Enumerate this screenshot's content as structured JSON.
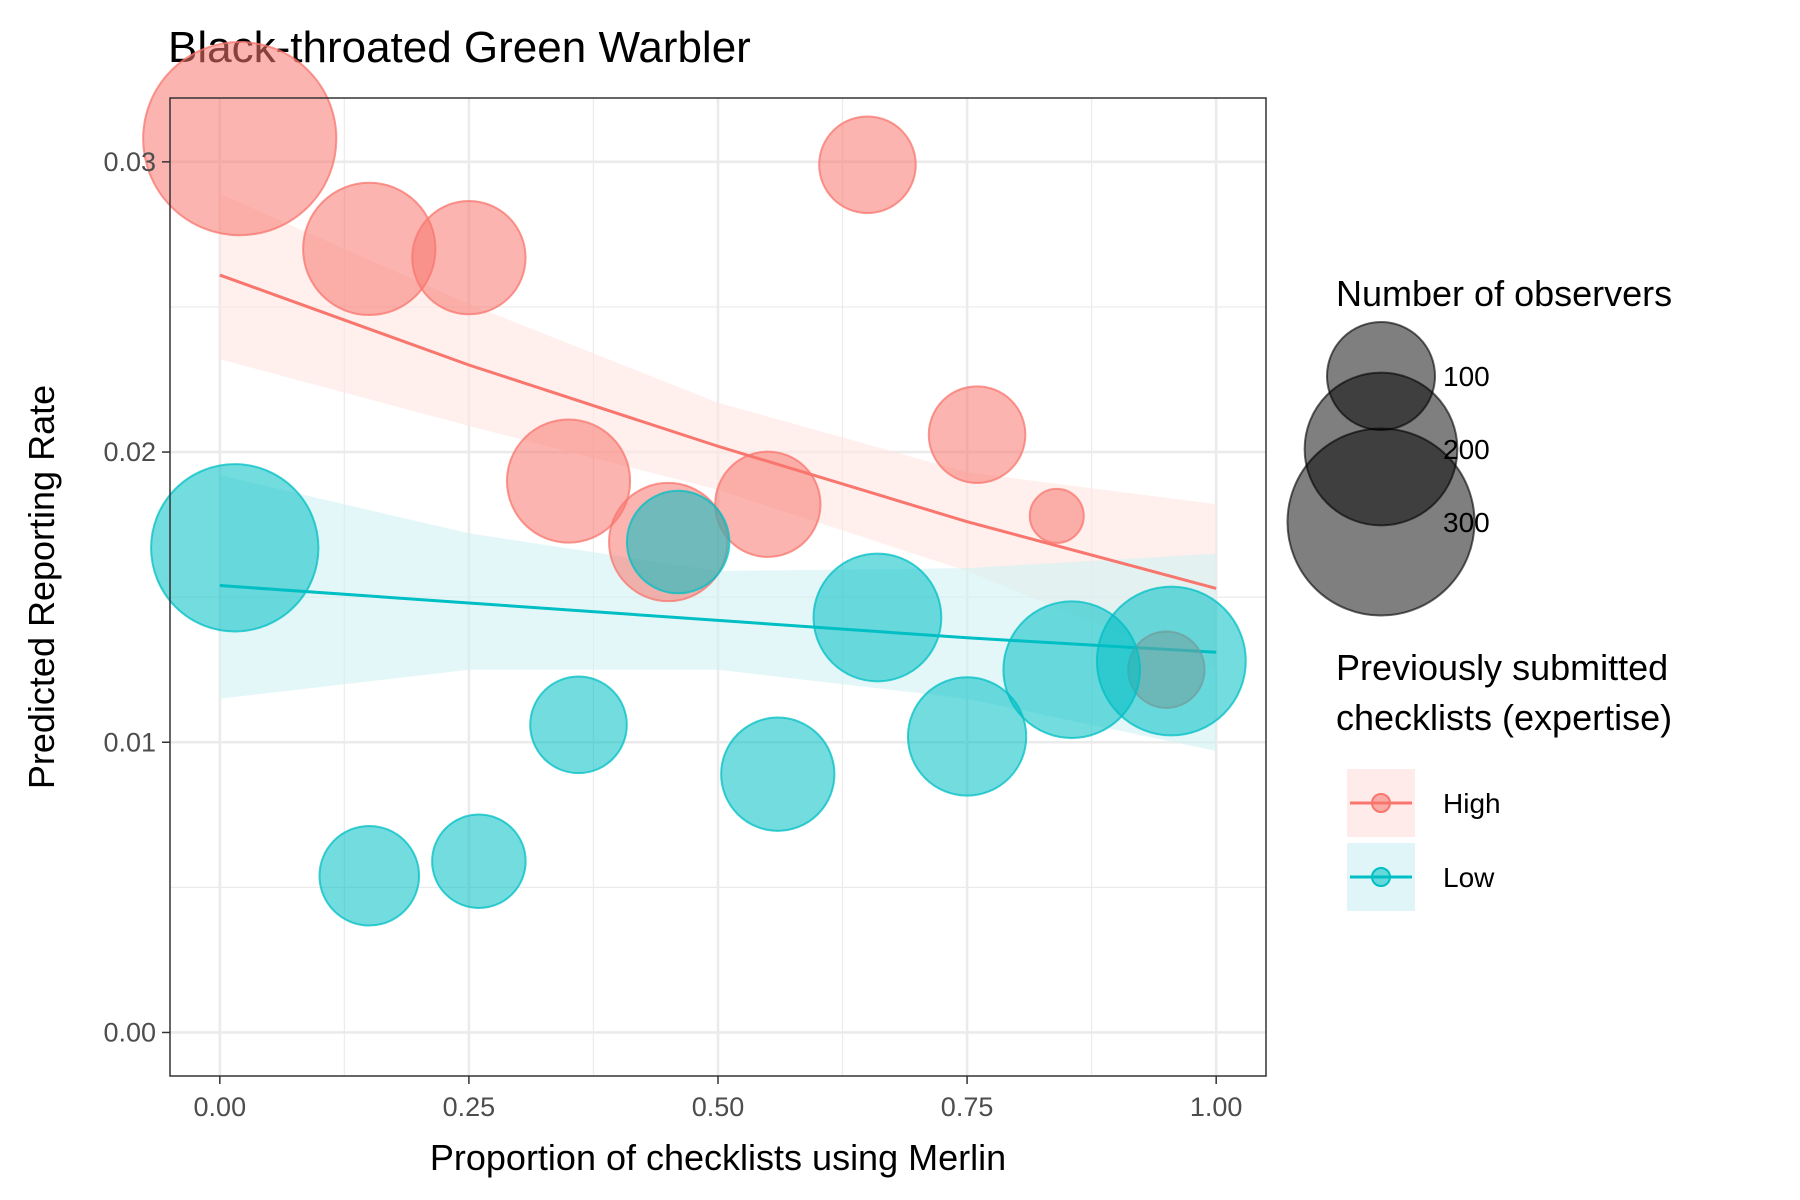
{
  "chart_data": {
    "type": "scatter",
    "title": "Black-throated Green Warbler",
    "xlabel": "Proportion of checklists using Merlin",
    "ylabel": "Predicted Reporting Rate",
    "xlim": [
      -0.05,
      1.05
    ],
    "ylim": [
      -0.0015,
      0.0322
    ],
    "x_ticks": [
      0.0,
      0.25,
      0.5,
      0.75,
      1.0
    ],
    "x_tick_labels": [
      "0.00",
      "0.25",
      "0.50",
      "0.75",
      "1.00"
    ],
    "y_ticks": [
      0.0,
      0.01,
      0.02,
      0.03
    ],
    "y_tick_labels": [
      "0.00",
      "0.01",
      "0.02",
      "0.03"
    ],
    "grid": true,
    "legend_position": "right",
    "size_legend": {
      "title": "Number of observers",
      "entries": [
        {
          "label": "100",
          "value": 100
        },
        {
          "label": "200",
          "value": 200
        },
        {
          "label": "300",
          "value": 300
        }
      ]
    },
    "color_legend": {
      "title_lines": [
        "Previously submitted",
        "checklists (expertise)"
      ]
    },
    "series": [
      {
        "name": "High",
        "color": "#F8766D",
        "ribbon_color": "#FFE4E1",
        "points": [
          {
            "x": 0.02,
            "y": 0.0308,
            "n": 320
          },
          {
            "x": 0.15,
            "y": 0.027,
            "n": 150
          },
          {
            "x": 0.25,
            "y": 0.0267,
            "n": 110
          },
          {
            "x": 0.35,
            "y": 0.019,
            "n": 130
          },
          {
            "x": 0.45,
            "y": 0.0169,
            "n": 120
          },
          {
            "x": 0.55,
            "y": 0.0182,
            "n": 95
          },
          {
            "x": 0.65,
            "y": 0.0299,
            "n": 80
          },
          {
            "x": 0.76,
            "y": 0.0206,
            "n": 80
          },
          {
            "x": 0.84,
            "y": 0.0178,
            "n": 25
          },
          {
            "x": 0.95,
            "y": 0.0125,
            "n": 50
          }
        ],
        "fit": [
          {
            "x": 0.0,
            "y": 0.0261,
            "lo": 0.0232,
            "hi": 0.0289
          },
          {
            "x": 0.25,
            "y": 0.023,
            "lo": 0.0209,
            "hi": 0.0251
          },
          {
            "x": 0.5,
            "y": 0.0202,
            "lo": 0.0187,
            "hi": 0.0217
          },
          {
            "x": 0.75,
            "y": 0.0176,
            "lo": 0.0159,
            "hi": 0.0193
          },
          {
            "x": 1.0,
            "y": 0.0153,
            "lo": 0.0124,
            "hi": 0.0182
          }
        ]
      },
      {
        "name": "Low",
        "color": "#00BFC4",
        "ribbon_color": "#D2F1F3",
        "points": [
          {
            "x": 0.015,
            "y": 0.0167,
            "n": 240
          },
          {
            "x": 0.15,
            "y": 0.0054,
            "n": 85
          },
          {
            "x": 0.26,
            "y": 0.0059,
            "n": 75
          },
          {
            "x": 0.36,
            "y": 0.0106,
            "n": 80
          },
          {
            "x": 0.46,
            "y": 0.0169,
            "n": 90
          },
          {
            "x": 0.56,
            "y": 0.0089,
            "n": 110
          },
          {
            "x": 0.66,
            "y": 0.0143,
            "n": 140
          },
          {
            "x": 0.75,
            "y": 0.0102,
            "n": 120
          },
          {
            "x": 0.855,
            "y": 0.0125,
            "n": 160
          },
          {
            "x": 0.955,
            "y": 0.0128,
            "n": 190
          }
        ],
        "fit": [
          {
            "x": 0.0,
            "y": 0.0154,
            "lo": 0.0115,
            "hi": 0.0192
          },
          {
            "x": 0.25,
            "y": 0.0148,
            "lo": 0.0125,
            "hi": 0.0172
          },
          {
            "x": 0.5,
            "y": 0.0142,
            "lo": 0.0125,
            "hi": 0.0159
          },
          {
            "x": 0.75,
            "y": 0.0136,
            "lo": 0.0115,
            "hi": 0.016
          },
          {
            "x": 1.0,
            "y": 0.0131,
            "lo": 0.0097,
            "hi": 0.0165
          }
        ]
      }
    ]
  }
}
